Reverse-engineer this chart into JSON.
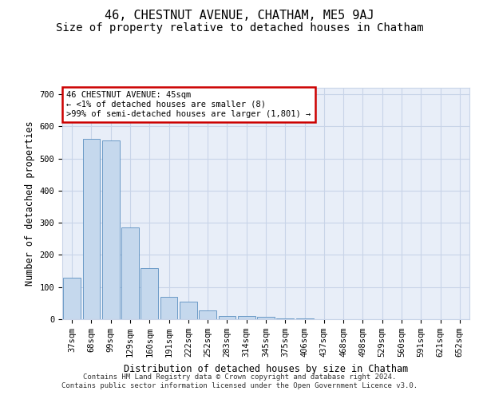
{
  "title": "46, CHESTNUT AVENUE, CHATHAM, ME5 9AJ",
  "subtitle": "Size of property relative to detached houses in Chatham",
  "xlabel": "Distribution of detached houses by size in Chatham",
  "ylabel": "Number of detached properties",
  "categories": [
    "37sqm",
    "68sqm",
    "99sqm",
    "129sqm",
    "160sqm",
    "191sqm",
    "222sqm",
    "252sqm",
    "283sqm",
    "314sqm",
    "345sqm",
    "375sqm",
    "406sqm",
    "437sqm",
    "468sqm",
    "498sqm",
    "529sqm",
    "560sqm",
    "591sqm",
    "621sqm",
    "652sqm"
  ],
  "values": [
    130,
    560,
    555,
    285,
    160,
    70,
    55,
    28,
    10,
    10,
    8,
    3,
    3,
    1,
    0,
    0,
    0,
    0,
    0,
    0,
    0
  ],
  "bar_color": "#c5d8ed",
  "bar_edge_color": "#5a8fc0",
  "annotation_text_line1": "46 CHESTNUT AVENUE: 45sqm",
  "annotation_text_line2": "← <1% of detached houses are smaller (8)",
  "annotation_text_line3": ">99% of semi-detached houses are larger (1,801) →",
  "box_edge_color": "#cc0000",
  "ylim": [
    0,
    720
  ],
  "yticks": [
    0,
    100,
    200,
    300,
    400,
    500,
    600,
    700
  ],
  "grid_color": "#c8d4e8",
  "background_color": "#e8eef8",
  "footer_line1": "Contains HM Land Registry data © Crown copyright and database right 2024.",
  "footer_line2": "Contains public sector information licensed under the Open Government Licence v3.0.",
  "title_fontsize": 11,
  "subtitle_fontsize": 10,
  "label_fontsize": 8.5,
  "tick_fontsize": 7.5,
  "annotation_fontsize": 7.5,
  "footer_fontsize": 6.5
}
